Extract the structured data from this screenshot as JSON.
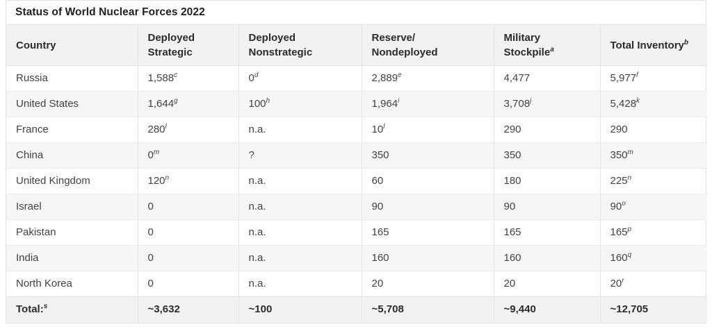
{
  "title": "Status of World Nuclear Forces 2022",
  "colors": {
    "header_bg": "#f2f2f2",
    "stripe_bg": "#f6f6f6",
    "total_row_bg": "#f2f2f2",
    "border": "#e2e2e2",
    "title_text": "#1f1f1f",
    "body_text": "#414141"
  },
  "table": {
    "headers": [
      {
        "text": "Country",
        "sup": ""
      },
      {
        "text": "Deployed Strategic",
        "sup": ""
      },
      {
        "text": "Deployed Nonstrategic",
        "sup": ""
      },
      {
        "text": "Reserve/ Nondeployed",
        "sup": ""
      },
      {
        "text": "Military Stockpile",
        "sup": "a"
      },
      {
        "text": "Total Inventory",
        "sup": "b"
      }
    ],
    "rows": [
      {
        "country": "Russia",
        "deployed_strategic": {
          "v": "1,588",
          "sup": "c"
        },
        "deployed_nonstrategic": {
          "v": "0",
          "sup": "d"
        },
        "reserve_nondeployed": {
          "v": "2,889",
          "sup": "e"
        },
        "military_stockpile": {
          "v": "4,477",
          "sup": ""
        },
        "total_inventory": {
          "v": "5,977",
          "sup": "f"
        }
      },
      {
        "country": "United States",
        "deployed_strategic": {
          "v": "1,644",
          "sup": "g"
        },
        "deployed_nonstrategic": {
          "v": "100",
          "sup": "h"
        },
        "reserve_nondeployed": {
          "v": "1,964",
          "sup": "i"
        },
        "military_stockpile": {
          "v": "3,708",
          "sup": "j"
        },
        "total_inventory": {
          "v": "5,428",
          "sup": "k"
        }
      },
      {
        "country": "France",
        "deployed_strategic": {
          "v": "280",
          "sup": "l"
        },
        "deployed_nonstrategic": {
          "v": "n.a.",
          "sup": ""
        },
        "reserve_nondeployed": {
          "v": "10",
          "sup": "l"
        },
        "military_stockpile": {
          "v": "290",
          "sup": ""
        },
        "total_inventory": {
          "v": "290",
          "sup": ""
        }
      },
      {
        "country": "China",
        "deployed_strategic": {
          "v": "0",
          "sup": "m"
        },
        "deployed_nonstrategic": {
          "v": "?",
          "sup": ""
        },
        "reserve_nondeployed": {
          "v": "350",
          "sup": ""
        },
        "military_stockpile": {
          "v": "350",
          "sup": ""
        },
        "total_inventory": {
          "v": "350",
          "sup": "m"
        }
      },
      {
        "country": "United Kingdom",
        "deployed_strategic": {
          "v": "120",
          "sup": "n"
        },
        "deployed_nonstrategic": {
          "v": "n.a.",
          "sup": ""
        },
        "reserve_nondeployed": {
          "v": "60",
          "sup": ""
        },
        "military_stockpile": {
          "v": "180",
          "sup": ""
        },
        "total_inventory": {
          "v": "225",
          "sup": "n"
        }
      },
      {
        "country": "Israel",
        "deployed_strategic": {
          "v": "0",
          "sup": ""
        },
        "deployed_nonstrategic": {
          "v": "n.a.",
          "sup": ""
        },
        "reserve_nondeployed": {
          "v": "90",
          "sup": ""
        },
        "military_stockpile": {
          "v": "90",
          "sup": ""
        },
        "total_inventory": {
          "v": "90",
          "sup": "o"
        }
      },
      {
        "country": "Pakistan",
        "deployed_strategic": {
          "v": "0",
          "sup": ""
        },
        "deployed_nonstrategic": {
          "v": "n.a.",
          "sup": ""
        },
        "reserve_nondeployed": {
          "v": "165",
          "sup": ""
        },
        "military_stockpile": {
          "v": "165",
          "sup": ""
        },
        "total_inventory": {
          "v": "165",
          "sup": "p"
        }
      },
      {
        "country": "India",
        "deployed_strategic": {
          "v": "0",
          "sup": ""
        },
        "deployed_nonstrategic": {
          "v": "n.a.",
          "sup": ""
        },
        "reserve_nondeployed": {
          "v": "160",
          "sup": ""
        },
        "military_stockpile": {
          "v": "160",
          "sup": ""
        },
        "total_inventory": {
          "v": "160",
          "sup": "q"
        }
      },
      {
        "country": "North Korea",
        "deployed_strategic": {
          "v": "0",
          "sup": ""
        },
        "deployed_nonstrategic": {
          "v": "n.a.",
          "sup": ""
        },
        "reserve_nondeployed": {
          "v": "20",
          "sup": ""
        },
        "military_stockpile": {
          "v": "20",
          "sup": ""
        },
        "total_inventory": {
          "v": "20",
          "sup": "r"
        }
      }
    ],
    "total": {
      "label": "Total:",
      "label_sup": "s",
      "deployed_strategic": "~3,632",
      "deployed_nonstrategic": "~100",
      "reserve_nondeployed": "~5,708",
      "military_stockpile": "~9,440",
      "total_inventory": "~12,705"
    }
  }
}
